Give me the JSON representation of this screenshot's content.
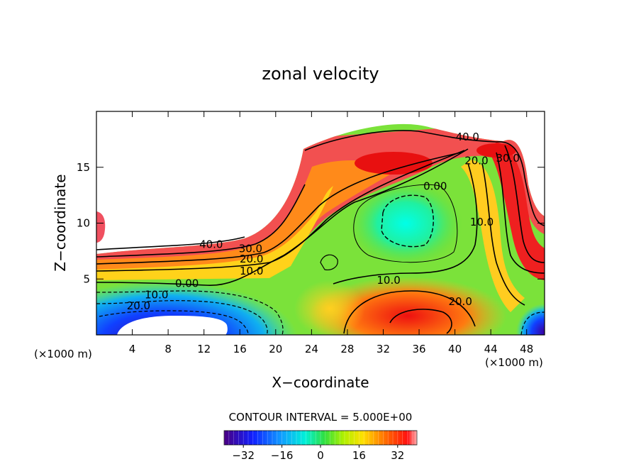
{
  "chart_data": {
    "type": "heatmap",
    "title": "zonal velocity",
    "xlabel": "X−coordinate",
    "ylabel": "Z−coordinate",
    "x_unit_left": "(×1000 m)",
    "x_unit_right": "(×1000 m)",
    "xlim": [
      0,
      50
    ],
    "ylim": [
      0,
      20
    ],
    "x_ticks": [
      4,
      8,
      12,
      16,
      20,
      24,
      28,
      32,
      36,
      40,
      44,
      48
    ],
    "y_ticks": [
      5,
      10,
      15
    ],
    "contour_interval_text": "CONTOUR INTERVAL = 5.000E+00",
    "colorbar": {
      "range": [
        -40,
        40
      ],
      "ticks": [
        -32,
        -16,
        0,
        16,
        32
      ],
      "tick_labels": [
        "−32",
        "−16",
        "0",
        "16",
        "32"
      ]
    },
    "contour_labels": [
      {
        "text": "40.0",
        "x": 12.8,
        "y": 8.1
      },
      {
        "text": "30.0",
        "x": 17.2,
        "y": 7.7
      },
      {
        "text": "20.0",
        "x": 17.3,
        "y": 6.8
      },
      {
        "text": "10.0",
        "x": 17.3,
        "y": 5.7
      },
      {
        "text": "0.00",
        "x": 10.1,
        "y": 4.6
      },
      {
        "text": "10.0",
        "x": 6.7,
        "y": 3.6
      },
      {
        "text": "20.0",
        "x": 4.7,
        "y": 2.6
      },
      {
        "text": "40.0",
        "x": 41.4,
        "y": 17.7
      },
      {
        "text": "20.0",
        "x": 42.4,
        "y": 15.6
      },
      {
        "text": "30.0",
        "x": 45.9,
        "y": 15.8
      },
      {
        "text": "0.00",
        "x": 37.8,
        "y": 13.3
      },
      {
        "text": "10.0",
        "x": 43.0,
        "y": 10.1
      },
      {
        "text": "10.0",
        "x": 32.6,
        "y": 4.9
      },
      {
        "text": "20.0",
        "x": 40.6,
        "y": 3.0
      }
    ],
    "regions": {
      "cyan_core": {
        "x": 34.6,
        "y": 10.5
      },
      "red_lower": {
        "x": 36,
        "y": 1.8
      },
      "purple_lower_left": {
        "x": 4,
        "y": 0.8
      }
    }
  }
}
